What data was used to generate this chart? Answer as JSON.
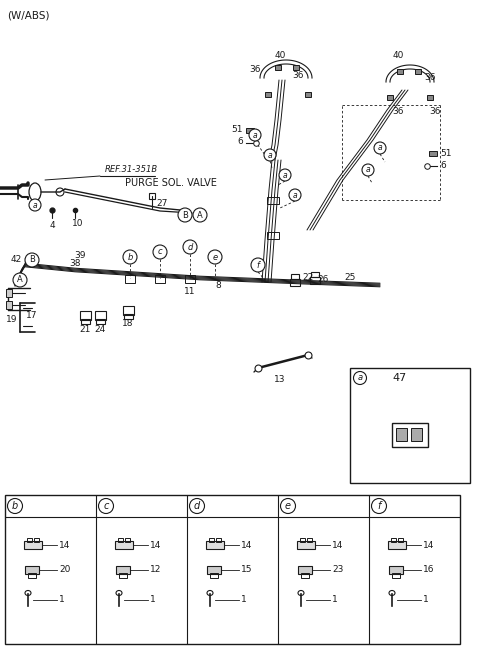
{
  "bg_color": "#ffffff",
  "line_color": "#1a1a1a",
  "text_color": "#1a1a1a",
  "fig_width": 4.8,
  "fig_height": 6.49,
  "dpi": 100,
  "title": "(W/ABS)",
  "ref_text": "REF.31-351B",
  "purge_text": "PURGE SOL. VALVE",
  "bottom_parts": [
    {
      "label": "b",
      "nums": [
        "14",
        "20",
        "1"
      ]
    },
    {
      "label": "c",
      "nums": [
        "14",
        "12",
        "1"
      ]
    },
    {
      "label": "d",
      "nums": [
        "14",
        "15",
        "1"
      ]
    },
    {
      "label": "e",
      "nums": [
        "14",
        "23",
        "1"
      ]
    },
    {
      "label": "f",
      "nums": [
        "14",
        "16",
        "1"
      ]
    }
  ],
  "inset_label": "a",
  "inset_num": "47"
}
